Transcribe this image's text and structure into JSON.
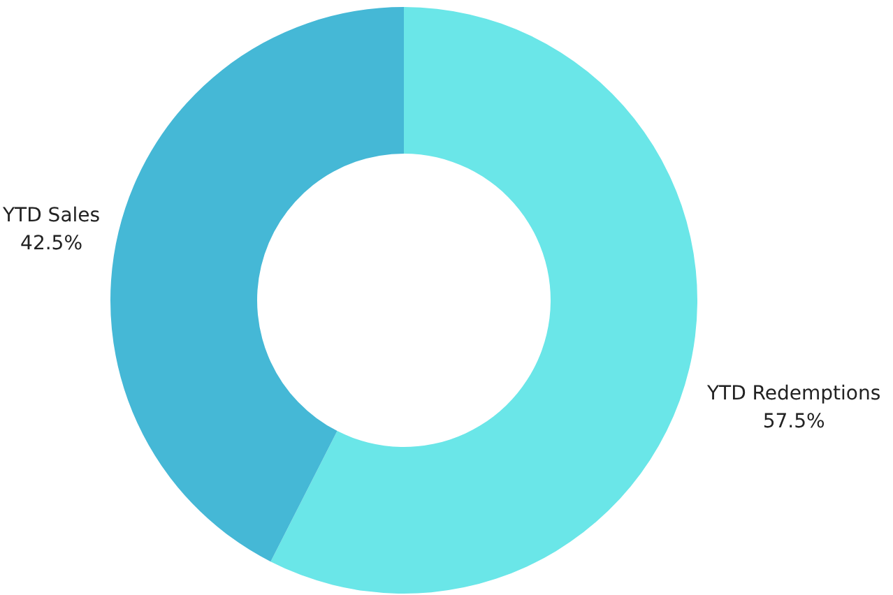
{
  "chart_data": {
    "type": "donut",
    "categories": [
      "YTD Redemptions",
      "YTD Sales"
    ],
    "values": [
      57.5,
      42.5
    ],
    "colors": [
      "#6ae6e8",
      "#45b8d6"
    ],
    "value_labels": [
      "57.5%",
      "42.5%"
    ]
  }
}
